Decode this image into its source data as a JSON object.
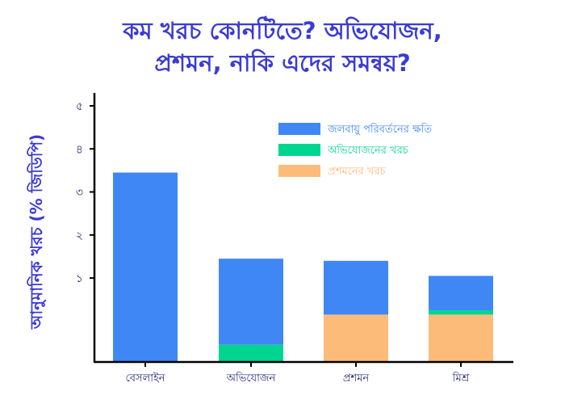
{
  "chart_data": {
    "type": "bar",
    "stacked": true,
    "title_lines": [
      "কম খরচ কোনটিতে? অভিযোজন,",
      "প্রশমন, নাকি এদের সমন্বয়?"
    ],
    "ylabel": "আনুমানিক খরচ (% জিডিপি)",
    "xlabel": "",
    "ylim": [
      -0.95,
      5.3
    ],
    "yticks": [
      1,
      2,
      3,
      4,
      5
    ],
    "ytick_labels": [
      "১",
      "২",
      "৩",
      "৪",
      "৫"
    ],
    "categories": [
      "বেসলাইন",
      "অভিযোজন",
      "প্রশমন",
      "মিশ্র"
    ],
    "series": [
      {
        "name": "প্রশমনের খরচ",
        "color": "#fdbb7a",
        "values": [
          0,
          0,
          1.1,
          1.1
        ]
      },
      {
        "name": "অভিযোজনের খরচ",
        "color": "#00d68f",
        "values": [
          0,
          0.4,
          0,
          0.1
        ]
      },
      {
        "name": "জলবায়ু পরিবর্তনের ক্ষতি",
        "color": "#3f87f5",
        "values": [
          4.4,
          2.0,
          1.25,
          0.8
        ]
      }
    ],
    "baseline": -0.95,
    "legend_order": [
      "জলবায়ু পরিবর্তনের ক্ষতি",
      "অভিযোজনের খরচ",
      "প্রশমনের খরচ"
    ],
    "legend_position": "top-right",
    "grid": false
  }
}
